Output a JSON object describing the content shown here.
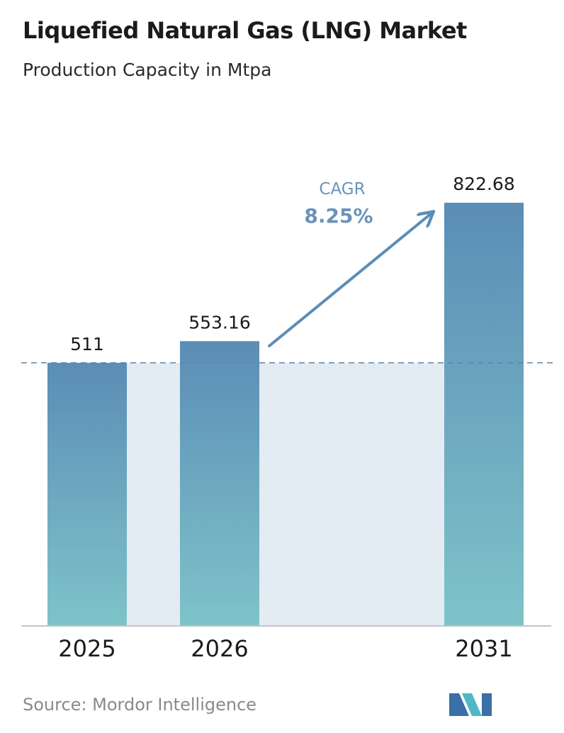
{
  "header": {
    "title": "Liquefied Natural Gas (LNG) Market",
    "subtitle": "Production Capacity in Mtpa"
  },
  "chart_data": {
    "type": "bar",
    "categories": [
      "2025",
      "2026",
      "2031"
    ],
    "values": [
      511,
      553.16,
      822.68
    ],
    "value_labels": [
      "511",
      "553.16",
      "822.68"
    ],
    "ylim": [
      0,
      822.68
    ],
    "grid": false,
    "reference_line": {
      "value": 511,
      "style": "dashed"
    },
    "annotation": {
      "label": "CAGR",
      "value": "8.25%"
    },
    "colors": {
      "bar_top": "#5b8db6",
      "bar_bottom": "#7ec3c9",
      "band": "#e3ebf3",
      "dashed_line": "#5f86a8",
      "arrow": "#5b8db6",
      "cagr_label": "#6b93b8"
    }
  },
  "footer": {
    "source": "Source: Mordor Intelligence",
    "logo_icon": "mordor-intelligence-logo-icon",
    "logo_colors": [
      "#3a6fa8",
      "#4fb8c4"
    ]
  }
}
